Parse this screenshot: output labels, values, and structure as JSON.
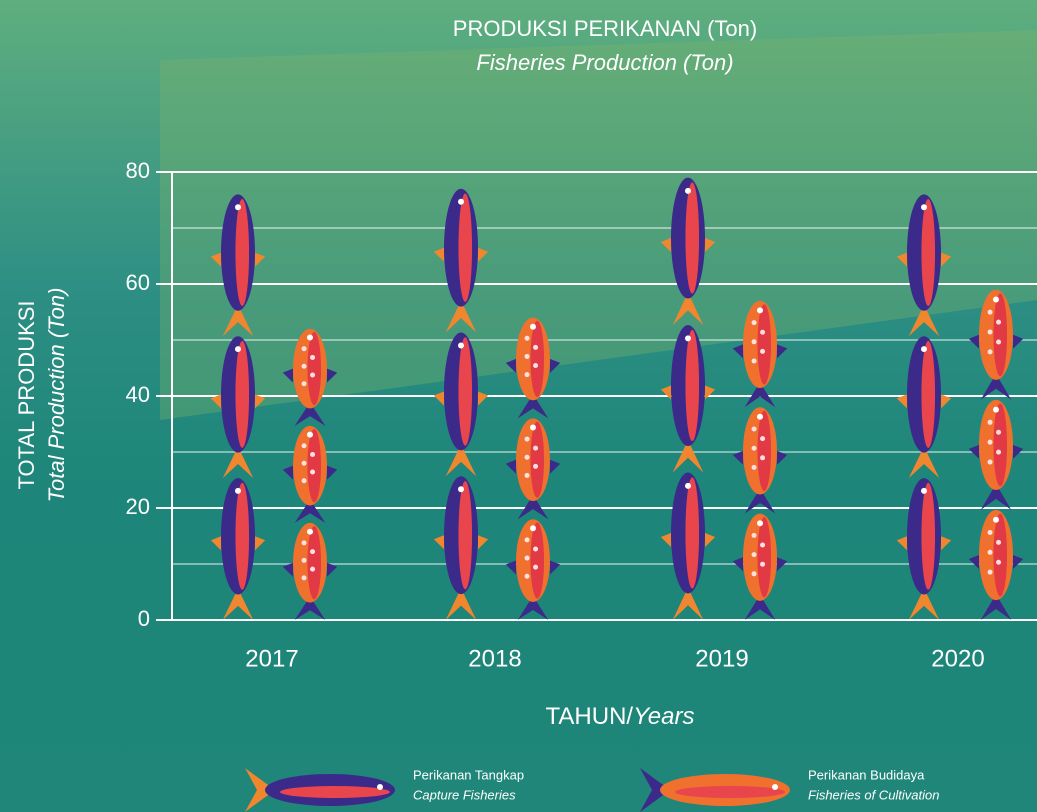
{
  "chart_data": {
    "type": "pictograph_bar",
    "title": "PRODUKSI PERIKANAN (Ton)",
    "subtitle": "Fisheries Production (Ton)",
    "y_label": "TOTAL PRODUKSI",
    "y_label_en": "Total Production (Ton)",
    "x_label": "TAHUN/",
    "x_label_en": "Years",
    "categories": [
      "2017",
      "2018",
      "2019",
      "2020"
    ],
    "series": [
      {
        "name": "Perikanan Tangkap",
        "name_en": "Capture Fisheries",
        "color": "#3b2a8a",
        "values": [
          76,
          77,
          79,
          76
        ]
      },
      {
        "name": "Perikanan Budidaya",
        "name_en": "Fisheries of Cultivation",
        "color": "#f0702e",
        "values": [
          52,
          54,
          57,
          59
        ]
      }
    ],
    "ylim": [
      0,
      80
    ],
    "yticks": [
      0,
      20,
      40,
      60,
      80
    ],
    "minor_yticks": [
      10,
      30,
      50,
      70
    ],
    "grid": true
  }
}
